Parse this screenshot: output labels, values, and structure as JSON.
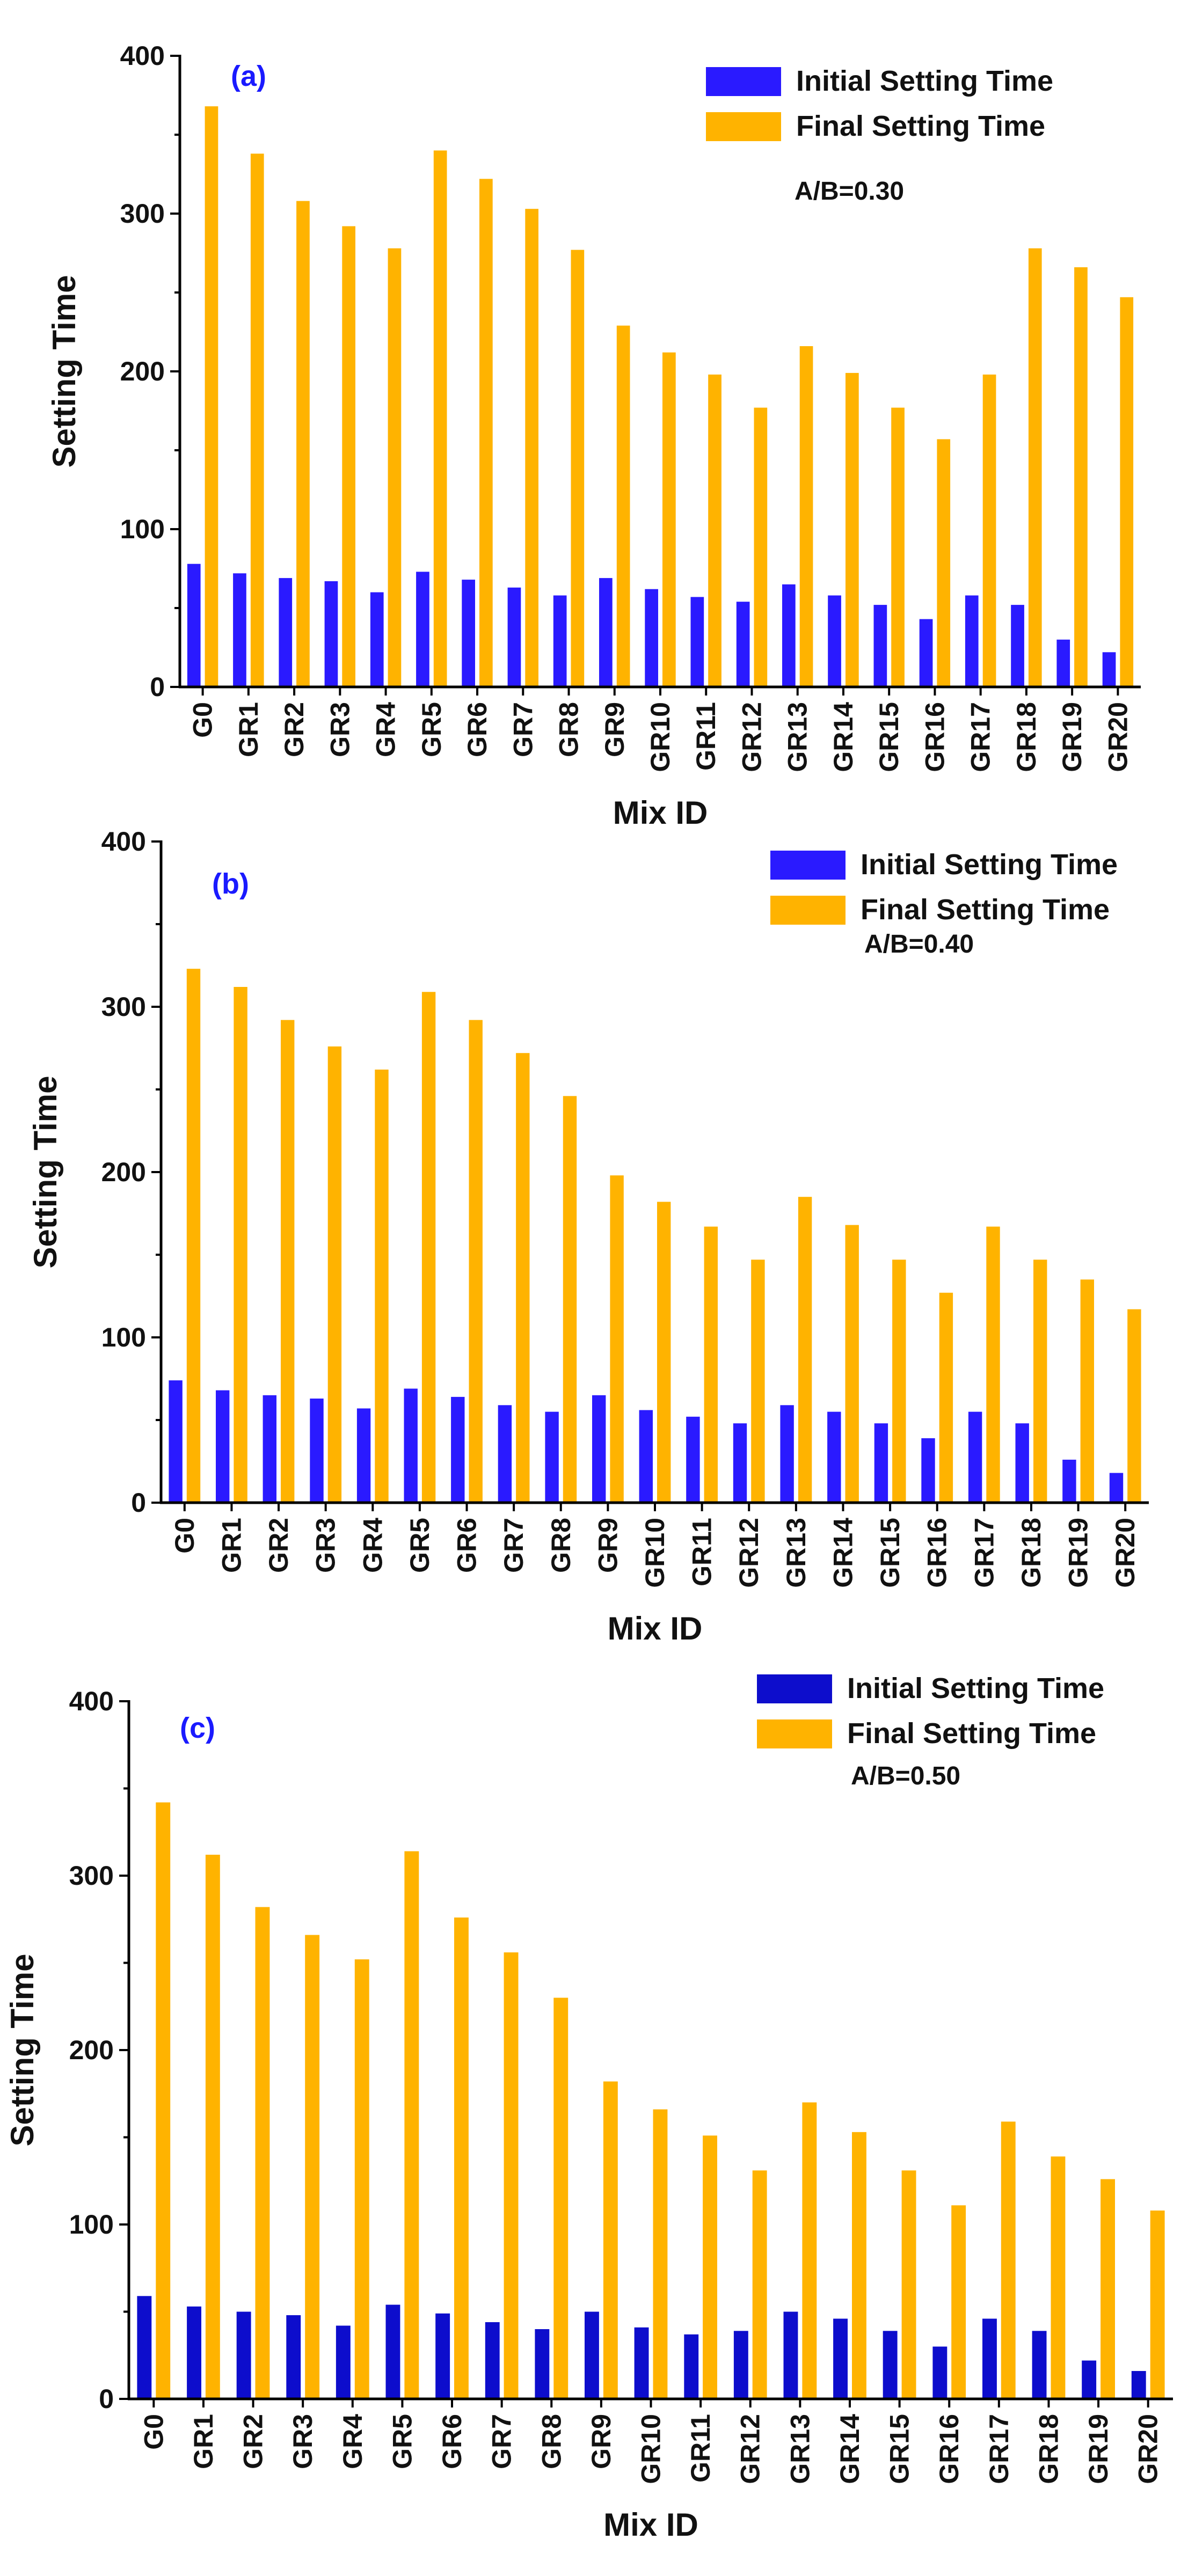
{
  "chart_data": [
    {
      "type": "bar",
      "panel_label": "(a)",
      "annotation": "A/B=0.30",
      "xlabel": "Mix ID",
      "ylabel": "Setting Time",
      "ylim": [
        0,
        400
      ],
      "yticks": [
        "0",
        "100",
        "200",
        "300",
        "400"
      ],
      "legend_position": "top-right",
      "categories": [
        "G0",
        "GR1",
        "GR2",
        "GR3",
        "GR4",
        "GR5",
        "GR6",
        "GR7",
        "GR8",
        "GR9",
        "GR10",
        "GR11",
        "GR12",
        "GR13",
        "GR14",
        "GR15",
        "GR16",
        "GR17",
        "GR18",
        "GR19",
        "GR20"
      ],
      "series": [
        {
          "name": "Initial Setting Time",
          "color": "#2a1aff",
          "values": [
            78,
            72,
            69,
            67,
            60,
            73,
            68,
            63,
            58,
            69,
            62,
            57,
            54,
            65,
            58,
            52,
            43,
            58,
            52,
            30,
            22
          ]
        },
        {
          "name": "Final Setting Time",
          "color": "#ffb300",
          "values": [
            368,
            338,
            308,
            292,
            278,
            340,
            322,
            303,
            277,
            229,
            212,
            198,
            177,
            216,
            199,
            177,
            157,
            198,
            278,
            266,
            247
          ]
        }
      ]
    },
    {
      "type": "bar",
      "panel_label": "(b)",
      "annotation": "A/B=0.40",
      "xlabel": "Mix ID",
      "ylabel": "Setting Time",
      "ylim": [
        0,
        400
      ],
      "yticks": [
        "0",
        "100",
        "200",
        "300",
        "400"
      ],
      "legend_position": "top-right",
      "categories": [
        "G0",
        "GR1",
        "GR2",
        "GR3",
        "GR4",
        "GR5",
        "GR6",
        "GR7",
        "GR8",
        "GR9",
        "GR10",
        "GR11",
        "GR12",
        "GR13",
        "GR14",
        "GR15",
        "GR16",
        "GR17",
        "GR18",
        "GR19",
        "GR20"
      ],
      "series": [
        {
          "name": "Initial Setting Time",
          "color": "#2a1aff",
          "values": [
            74,
            68,
            65,
            63,
            57,
            69,
            64,
            59,
            55,
            65,
            56,
            52,
            48,
            59,
            55,
            48,
            39,
            55,
            48,
            26,
            18
          ]
        },
        {
          "name": "Final Setting Time",
          "color": "#ffb300",
          "values": [
            323,
            312,
            292,
            276,
            262,
            309,
            292,
            272,
            246,
            198,
            182,
            167,
            147,
            185,
            168,
            147,
            127,
            167,
            147,
            135,
            117
          ]
        }
      ]
    },
    {
      "type": "bar",
      "panel_label": "(c)",
      "annotation": "A/B=0.50",
      "xlabel": "Mix ID",
      "ylabel": "Setting Time",
      "ylim": [
        0,
        400
      ],
      "yticks": [
        "0",
        "100",
        "200",
        "300",
        "400"
      ],
      "legend_position": "top-right",
      "categories": [
        "G0",
        "GR1",
        "GR2",
        "GR3",
        "GR4",
        "GR5",
        "GR6",
        "GR7",
        "GR8",
        "GR9",
        "GR10",
        "GR11",
        "GR12",
        "GR13",
        "GR14",
        "GR15",
        "GR16",
        "GR17",
        "GR18",
        "GR19",
        "GR20"
      ],
      "series": [
        {
          "name": "Initial Setting Time",
          "color": "#0d0dcc",
          "values": [
            59,
            53,
            50,
            48,
            42,
            54,
            49,
            44,
            40,
            50,
            41,
            37,
            39,
            50,
            46,
            39,
            30,
            46,
            39,
            22,
            16
          ]
        },
        {
          "name": "Final Setting Time",
          "color": "#ffb300",
          "values": [
            342,
            312,
            282,
            266,
            252,
            314,
            276,
            256,
            230,
            182,
            166,
            151,
            131,
            170,
            153,
            131,
            111,
            159,
            139,
            126,
            108
          ]
        }
      ]
    }
  ]
}
